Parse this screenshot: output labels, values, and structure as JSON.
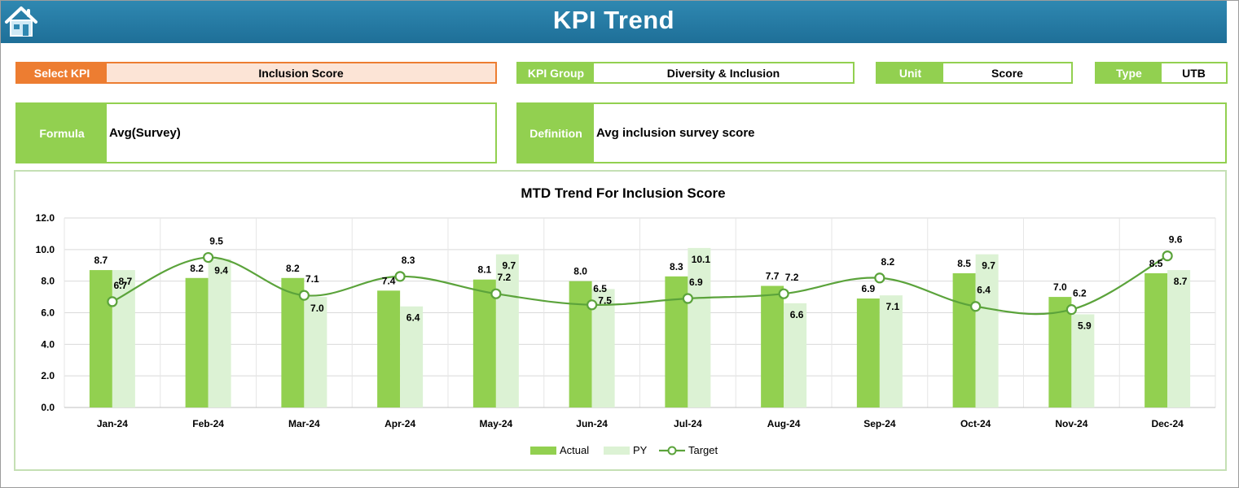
{
  "header": {
    "title": "KPI Trend",
    "home_icon": "home-icon"
  },
  "fields": {
    "select_kpi": {
      "label": "Select KPI",
      "value": "Inclusion Score"
    },
    "kpi_group": {
      "label": "KPI Group",
      "value": "Diversity & Inclusion"
    },
    "unit": {
      "label": "Unit",
      "value": "Score"
    },
    "type": {
      "label": "Type",
      "value": "UTB"
    },
    "formula": {
      "label": "Formula",
      "value": "Avg(Survey)"
    },
    "definition": {
      "label": "Definition",
      "value": "Avg inclusion survey score"
    }
  },
  "colors": {
    "header": "#1e6f98",
    "accent_green": "#92d050",
    "kpi_orange": "#ed7d31",
    "kpi_fill": "#fce4d6",
    "actual": "#92d050",
    "py": "#dcf2d4",
    "target": "#5ba33b"
  },
  "chart_data": {
    "type": "bar",
    "title": "MTD Trend For Inclusion Score",
    "categories": [
      "Jan-24",
      "Feb-24",
      "Mar-24",
      "Apr-24",
      "May-24",
      "Jun-24",
      "Jul-24",
      "Aug-24",
      "Sep-24",
      "Oct-24",
      "Nov-24",
      "Dec-24"
    ],
    "ylim": [
      0,
      12
    ],
    "yticks": [
      "0.0",
      "2.0",
      "4.0",
      "6.0",
      "8.0",
      "10.0",
      "12.0"
    ],
    "grid": true,
    "legend_position": "bottom",
    "series": [
      {
        "name": "Actual",
        "type": "bar",
        "values": [
          8.7,
          8.2,
          8.2,
          7.4,
          8.1,
          8.0,
          8.3,
          7.7,
          6.9,
          8.5,
          7.0,
          8.5
        ]
      },
      {
        "name": "PY",
        "type": "bar",
        "values": [
          8.7,
          9.4,
          7.0,
          6.4,
          9.7,
          7.5,
          10.1,
          6.6,
          7.1,
          9.7,
          5.9,
          8.7
        ]
      },
      {
        "name": "Target",
        "type": "line",
        "smooth": true,
        "values": [
          6.7,
          9.5,
          7.1,
          8.3,
          7.2,
          6.5,
          6.9,
          7.2,
          8.2,
          6.4,
          6.2,
          9.6
        ]
      }
    ]
  }
}
